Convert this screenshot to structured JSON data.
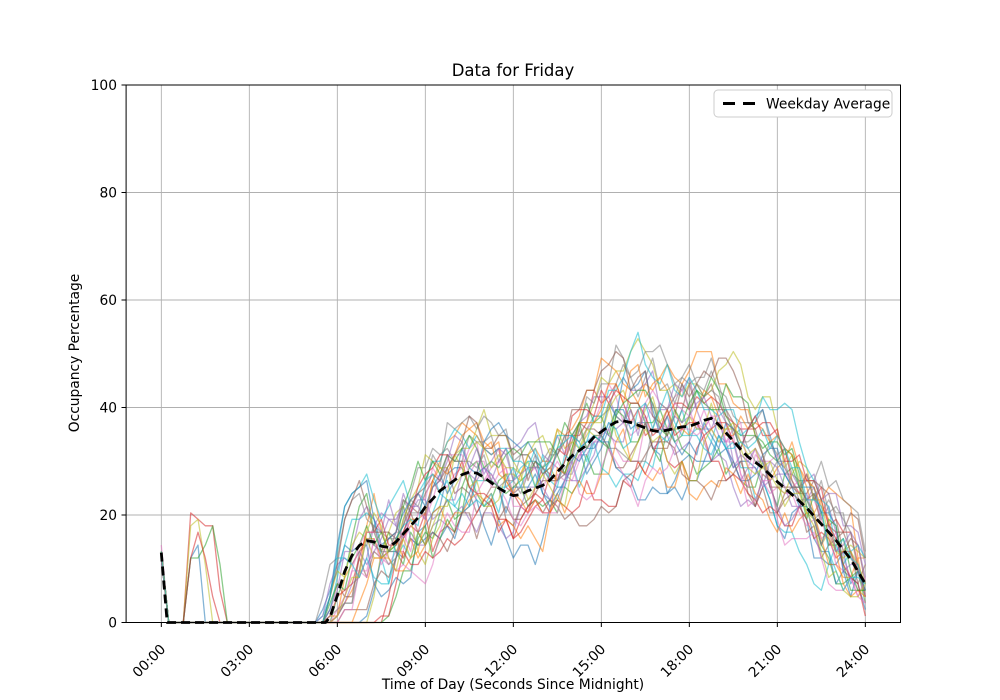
{
  "figure": {
    "background": "#ffffff",
    "grid_color": "#b0b0b0",
    "spine_color": "#000000"
  },
  "chart_data": {
    "type": "line",
    "title": "Data for Friday",
    "xlabel": "Time of Day (Seconds Since Midnight)",
    "ylabel": "Occupancy Percentage",
    "x_unit": "hours",
    "xlim": [
      -1.2,
      25.2
    ],
    "ylim": [
      0,
      100
    ],
    "x_tick_hours": [
      0,
      3,
      6,
      9,
      12,
      15,
      18,
      21,
      24
    ],
    "x_tick_labels": [
      "00:00",
      "03:00",
      "06:00",
      "09:00",
      "12:00",
      "15:00",
      "18:00",
      "21:00",
      "24:00"
    ],
    "y_ticks": [
      0,
      20,
      40,
      60,
      80,
      100
    ],
    "grid": true,
    "legend": {
      "position": "upper-right",
      "entries": [
        {
          "label": "Weekday Average",
          "color": "#000000",
          "style": "dashed"
        }
      ]
    },
    "average_series": {
      "name": "Weekday Average",
      "color": "#000000",
      "line_style": "dashed",
      "line_width": 2.8,
      "x_hours": [
        0,
        0.2,
        0.5,
        5.6,
        5.75,
        6,
        6.25,
        6.5,
        6.75,
        7,
        7.25,
        7.5,
        7.75,
        8,
        8.25,
        8.5,
        8.75,
        9,
        9.25,
        9.5,
        9.75,
        10,
        10.25,
        10.5,
        10.75,
        11,
        11.25,
        11.5,
        11.75,
        12,
        12.25,
        12.5,
        12.75,
        13,
        13.25,
        13.5,
        13.75,
        14,
        14.25,
        14.5,
        14.75,
        15,
        15.25,
        15.5,
        15.75,
        16,
        16.25,
        16.5,
        16.75,
        17,
        17.25,
        17.5,
        17.75,
        18,
        18.25,
        18.5,
        18.75,
        19,
        19.25,
        19.5,
        19.75,
        20,
        20.25,
        20.5,
        20.75,
        21,
        21.25,
        21.5,
        21.75,
        22,
        22.25,
        22.5,
        22.75,
        23,
        23.25,
        23.5,
        23.75,
        24
      ],
      "values": [
        13,
        0,
        0,
        0,
        1,
        5,
        9.5,
        12.5,
        14.3,
        15.2,
        15,
        14.2,
        14,
        15,
        16.5,
        18,
        19.5,
        21.5,
        23,
        24.5,
        25.5,
        26.5,
        27.5,
        28,
        27.8,
        27,
        26,
        25,
        24.2,
        23.6,
        23.8,
        24.5,
        25,
        25.5,
        26.5,
        28,
        29.5,
        31,
        32,
        33,
        34.5,
        35.5,
        36.5,
        37.3,
        37.5,
        37.2,
        36.7,
        36.2,
        35.7,
        35.5,
        35.8,
        36.1,
        36.4,
        36.5,
        37,
        37.6,
        38,
        36.8,
        35.3,
        33.8,
        32.2,
        30.8,
        29.8,
        28.8,
        27.5,
        26.2,
        25,
        23.8,
        22.6,
        21.3,
        19.8,
        18.3,
        16.8,
        15.3,
        13.5,
        11.8,
        9.5,
        7.2
      ]
    },
    "ensemble": {
      "description": "Individual Friday occupancy traces (semi-transparent, color-cycled)",
      "trace_count": 30,
      "colors": [
        "#1f77b4",
        "#ff7f0e",
        "#2ca02c",
        "#d62728",
        "#9467bd",
        "#8c564b",
        "#e377c2",
        "#7f7f7f",
        "#bcbd22",
        "#17becf"
      ],
      "opacity": 0.55,
      "line_width": 1.3,
      "seed": 7,
      "step_hours": 0.25,
      "gain_range": [
        0.78,
        1.3
      ],
      "shift_range_hours": [
        -0.35,
        0.5
      ],
      "late_start_fraction": 0.12,
      "late_start_extra_hours": [
        1.0,
        2.0
      ],
      "noise_amplitude": 4.4,
      "noise_smoothing": 0.55,
      "wobble_amplitude_range": [
        1.5,
        4.5
      ],
      "quantize_step": 1.2,
      "value_range": [
        0,
        100
      ]
    }
  }
}
